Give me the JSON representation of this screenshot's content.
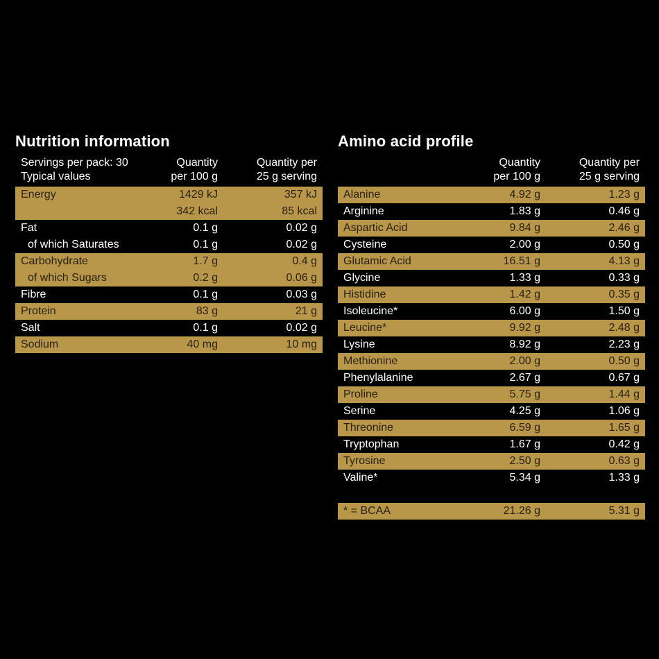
{
  "nutrition": {
    "title": "Nutrition information",
    "header": {
      "col1": "Servings per pack: 30\nTypical values",
      "col2": "Quantity\nper 100 g",
      "col3": "Quantity per\n25 g serving"
    },
    "rows": [
      {
        "label": "Energy",
        "per100": "1429 kJ",
        "perServing": "357 kJ",
        "style": "gold",
        "indent": false
      },
      {
        "label": "",
        "per100": "342 kcal",
        "perServing": "85 kcal",
        "style": "gold",
        "indent": false
      },
      {
        "label": "Fat",
        "per100": "0.1 g",
        "perServing": "0.02 g",
        "style": "black",
        "indent": false
      },
      {
        "label": "of which Saturates",
        "per100": "0.1 g",
        "perServing": "0.02 g",
        "style": "black",
        "indent": true
      },
      {
        "label": "Carbohydrate",
        "per100": "1.7 g",
        "perServing": "0.4 g",
        "style": "gold",
        "indent": false
      },
      {
        "label": "of which Sugars",
        "per100": "0.2 g",
        "perServing": "0.06 g",
        "style": "gold",
        "indent": true
      },
      {
        "label": "Fibre",
        "per100": "0.1 g",
        "perServing": "0.03 g",
        "style": "black",
        "indent": false
      },
      {
        "label": "Protein",
        "per100": "83 g",
        "perServing": "21 g",
        "style": "gold",
        "indent": false
      },
      {
        "label": "Salt",
        "per100": "0.1 g",
        "perServing": "0.02 g",
        "style": "black",
        "indent": false
      },
      {
        "label": "Sodium",
        "per100": "40 mg",
        "perServing": "10 mg",
        "style": "gold",
        "indent": false
      }
    ]
  },
  "amino": {
    "title": "Amino acid profile",
    "header": {
      "col1": "",
      "col2": "Quantity\nper 100 g",
      "col3": "Quantity per\n25 g serving"
    },
    "rows": [
      {
        "label": "Alanine",
        "per100": "4.92 g",
        "perServing": "1.23 g",
        "style": "gold"
      },
      {
        "label": "Arginine",
        "per100": "1.83 g",
        "perServing": "0.46 g",
        "style": "black"
      },
      {
        "label": "Aspartic Acid",
        "per100": "9.84 g",
        "perServing": "2.46 g",
        "style": "gold"
      },
      {
        "label": "Cysteine",
        "per100": "2.00 g",
        "perServing": "0.50 g",
        "style": "black"
      },
      {
        "label": "Glutamic Acid",
        "per100": "16.51 g",
        "perServing": "4.13 g",
        "style": "gold"
      },
      {
        "label": "Glycine",
        "per100": "1.33 g",
        "perServing": "0.33 g",
        "style": "black"
      },
      {
        "label": "Histidine",
        "per100": "1.42 g",
        "perServing": "0.35 g",
        "style": "gold"
      },
      {
        "label": "Isoleucine*",
        "per100": "6.00 g",
        "perServing": "1.50 g",
        "style": "black"
      },
      {
        "label": "Leucine*",
        "per100": "9.92 g",
        "perServing": "2.48 g",
        "style": "gold"
      },
      {
        "label": "Lysine",
        "per100": "8.92 g",
        "perServing": "2.23 g",
        "style": "black"
      },
      {
        "label": "Methionine",
        "per100": "2.00 g",
        "perServing": "0.50 g",
        "style": "gold"
      },
      {
        "label": "Phenylalanine",
        "per100": "2.67 g",
        "perServing": "0.67 g",
        "style": "black"
      },
      {
        "label": "Proline",
        "per100": "5.75 g",
        "perServing": "1.44 g",
        "style": "gold"
      },
      {
        "label": "Serine",
        "per100": "4.25 g",
        "perServing": "1.06 g",
        "style": "black"
      },
      {
        "label": "Threonine",
        "per100": "6.59 g",
        "perServing": "1.65 g",
        "style": "gold"
      },
      {
        "label": "Tryptophan",
        "per100": "1.67 g",
        "perServing": "0.42 g",
        "style": "black"
      },
      {
        "label": "Tyrosine",
        "per100": "2.50 g",
        "perServing": "0.63 g",
        "style": "gold"
      },
      {
        "label": "Valine*",
        "per100": "5.34 g",
        "perServing": "1.33 g",
        "style": "black"
      }
    ],
    "bcaa": {
      "label": "* = BCAA",
      "per100": "21.26 g",
      "perServing": "5.31 g",
      "style": "gold"
    }
  },
  "colors": {
    "background": "#000000",
    "gold": "#b8964a",
    "gold_text": "#2a2112",
    "white_text": "#ffffff"
  }
}
